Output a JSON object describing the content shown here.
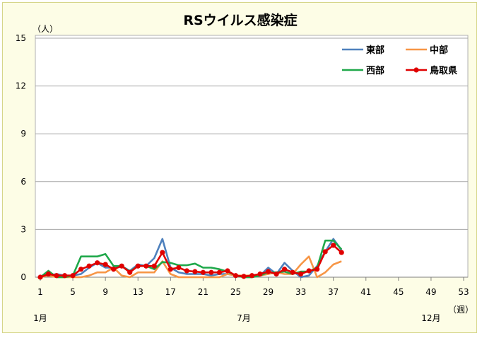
{
  "chart_data": {
    "type": "line",
    "title": "RSウイルス感染症",
    "y_unit": "（人）",
    "x_unit": "（週）",
    "ylim": [
      0,
      15
    ],
    "yticks": [
      0,
      3,
      6,
      9,
      12,
      15
    ],
    "xlim": [
      1,
      53
    ],
    "xticks": [
      1,
      5,
      9,
      13,
      17,
      21,
      25,
      29,
      33,
      37,
      41,
      45,
      49,
      53
    ],
    "month_labels": [
      {
        "week": 1,
        "label": "1月"
      },
      {
        "week": 26,
        "label": "7月"
      },
      {
        "week": 49,
        "label": "12月"
      }
    ],
    "grid": "horizontal",
    "legend_position": "top-right",
    "x": [
      1,
      2,
      3,
      4,
      5,
      6,
      7,
      8,
      9,
      10,
      11,
      12,
      13,
      14,
      15,
      16,
      17,
      18,
      19,
      20,
      21,
      22,
      23,
      24,
      25,
      26,
      27,
      28,
      29,
      30,
      31,
      32,
      33,
      34,
      35,
      36,
      37,
      38
    ],
    "series": [
      {
        "name": "東部",
        "color": "#4f81bd",
        "markers": false,
        "values": [
          0,
          0.1,
          0.2,
          0.1,
          0.1,
          0.2,
          0.6,
          0.9,
          0.6,
          0.6,
          0.7,
          0.4,
          0.8,
          0.7,
          1.2,
          2.4,
          0.6,
          0.3,
          0.2,
          0.2,
          0.2,
          0.1,
          0.2,
          0.2,
          0.1,
          0,
          0,
          0.1,
          0.6,
          0.2,
          0.9,
          0.4,
          0,
          0.1,
          0.7,
          1.6,
          2.4,
          1.7
        ]
      },
      {
        "name": "中部",
        "color": "#f79646",
        "markers": false,
        "values": [
          0,
          0.1,
          0,
          0,
          0,
          0,
          0.1,
          0.3,
          0.3,
          0.6,
          0.1,
          0,
          0.3,
          0.3,
          0.3,
          1.0,
          0.2,
          0,
          0,
          0,
          0,
          0,
          0,
          0.2,
          0.1,
          0.1,
          0.1,
          0.1,
          0.2,
          0.3,
          0.2,
          0.2,
          0.8,
          1.3,
          0,
          0.3,
          0.8,
          1.0
        ]
      },
      {
        "name": "西部",
        "color": "#1fa84a",
        "markers": false,
        "values": [
          0,
          0.4,
          0,
          0,
          0.1,
          1.3,
          1.3,
          1.3,
          1.45,
          0.7,
          0.7,
          0.35,
          0.7,
          0.7,
          0.5,
          0.95,
          0.9,
          0.75,
          0.75,
          0.85,
          0.6,
          0.6,
          0.5,
          0.35,
          0.1,
          0,
          0,
          0.1,
          0.3,
          0.3,
          0.35,
          0.2,
          0.35,
          0.35,
          0.6,
          2.3,
          2.3,
          1.75
        ]
      },
      {
        "name": "鳥取県",
        "color": "#e00000",
        "markers": true,
        "values": [
          0,
          0.2,
          0.1,
          0.1,
          0.1,
          0.5,
          0.7,
          0.9,
          0.8,
          0.5,
          0.7,
          0.3,
          0.7,
          0.7,
          0.7,
          1.55,
          0.5,
          0.6,
          0.4,
          0.35,
          0.3,
          0.3,
          0.3,
          0.4,
          0.1,
          0.05,
          0.1,
          0.2,
          0.35,
          0.2,
          0.5,
          0.3,
          0.2,
          0.4,
          0.5,
          1.6,
          2.0,
          1.55
        ]
      }
    ]
  }
}
